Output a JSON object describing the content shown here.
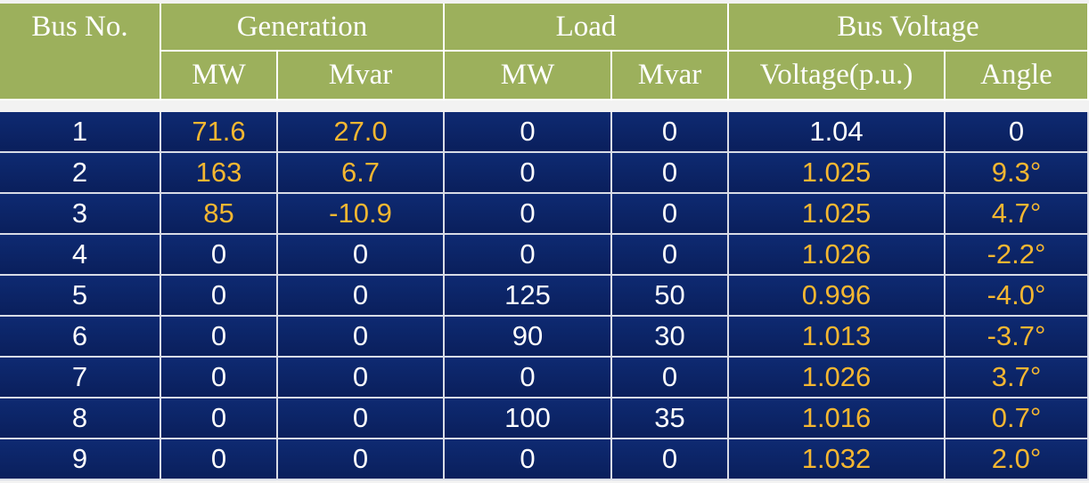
{
  "table": {
    "header": {
      "groups": [
        "Bus No.",
        "Generation",
        "Load",
        "Bus Voltage"
      ],
      "columns": [
        "MW",
        "Mvar",
        "MW",
        "Mvar",
        "Voltage(p.u.)",
        "Angle"
      ]
    },
    "rows": [
      [
        "1",
        "71.6",
        "27.0",
        "0",
        "0",
        "1.04",
        "0"
      ],
      [
        "2",
        "163",
        "6.7",
        "0",
        "0",
        "1.025",
        "9.3°"
      ],
      [
        "3",
        "85",
        "-10.9",
        "0",
        "0",
        "1.025",
        "4.7°"
      ],
      [
        "4",
        "0",
        "0",
        "0",
        "0",
        "1.026",
        "-2.2°"
      ],
      [
        "5",
        "0",
        "0",
        "125",
        "50",
        "0.996",
        "-4.0°"
      ],
      [
        "6",
        "0",
        "0",
        "90",
        "30",
        "1.013",
        "-3.7°"
      ],
      [
        "7",
        "0",
        "0",
        "0",
        "0",
        "1.026",
        "3.7°"
      ],
      [
        "8",
        "0",
        "0",
        "100",
        "35",
        "1.016",
        "0.7°"
      ],
      [
        "9",
        "0",
        "0",
        "0",
        "0",
        "1.032",
        "2.0°"
      ]
    ]
  }
}
